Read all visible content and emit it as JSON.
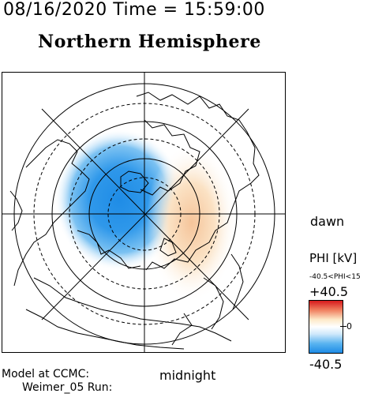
{
  "header": {
    "timestamp": "08/16/2020 Time = 15:59:00",
    "hemisphere_title": "Northern Hemisphere"
  },
  "map": {
    "orientation_labels": {
      "dawn": "dawn",
      "midnight": "midnight"
    },
    "potential_pattern": {
      "negative_cell": "dusk/pre-midnight sector",
      "positive_cell": "dawn sector"
    }
  },
  "colorbar": {
    "quantity_label": "PHI [kV]",
    "range_label": "-40.5<PHI<15",
    "max_label": "+40.5",
    "zero_label": "0",
    "min_label": "-40.5",
    "colors": {
      "max": "#d7191c",
      "mid": "#ffffff",
      "min": "#1f8ce6"
    }
  },
  "credits": {
    "line1": "Model at CCMC:",
    "line2": "Weimer_05 Run:"
  }
}
